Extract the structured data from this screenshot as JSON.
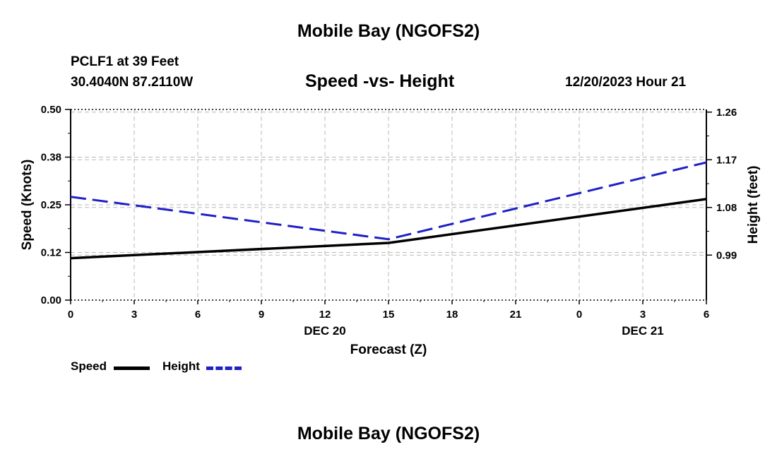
{
  "header": {
    "title": "Mobile Bay (NGOFS2)",
    "station": "PCLF1 at 39 Feet",
    "coords": "30.4040N  87.2110W",
    "chart_title": "Speed -vs- Height",
    "datetime": "12/20/2023 Hour 21"
  },
  "footer": {
    "title": "Mobile Bay (NGOFS2)"
  },
  "chart_data": {
    "type": "line",
    "title": "Speed -vs- Height",
    "xlabel": "Forecast (Z)",
    "ylabel": "Speed (Knots)",
    "y2label": "Height (feet)",
    "x_ticks": [
      "0",
      "3",
      "6",
      "9",
      "12",
      "15",
      "18",
      "21",
      "0",
      "3",
      "6"
    ],
    "x_date_labels": [
      {
        "text": "DEC 20",
        "at_tick": 4
      },
      {
        "text": "DEC 21",
        "at_tick": 9
      }
    ],
    "y_ticks": [
      "0.00",
      "0.12",
      "0.25",
      "0.38",
      "0.50"
    ],
    "y2_ticks": [
      "0.99",
      "1.08",
      "1.17",
      "1.26"
    ],
    "ylim": [
      0,
      0.5
    ],
    "y2lim": [
      0.905,
      1.265
    ],
    "xlim": [
      0,
      30
    ],
    "grid": true,
    "legend_position": "bottom-left",
    "series": [
      {
        "name": "Speed",
        "axis": "left",
        "color": "#000000",
        "style": "solid",
        "x": [
          0,
          15,
          30
        ],
        "values": [
          0.11,
          0.15,
          0.265
        ]
      },
      {
        "name": "Height",
        "axis": "right",
        "color": "#1f1fc8",
        "style": "dashed",
        "x": [
          0,
          15,
          30
        ],
        "values": [
          1.1,
          1.02,
          1.165
        ]
      }
    ]
  }
}
